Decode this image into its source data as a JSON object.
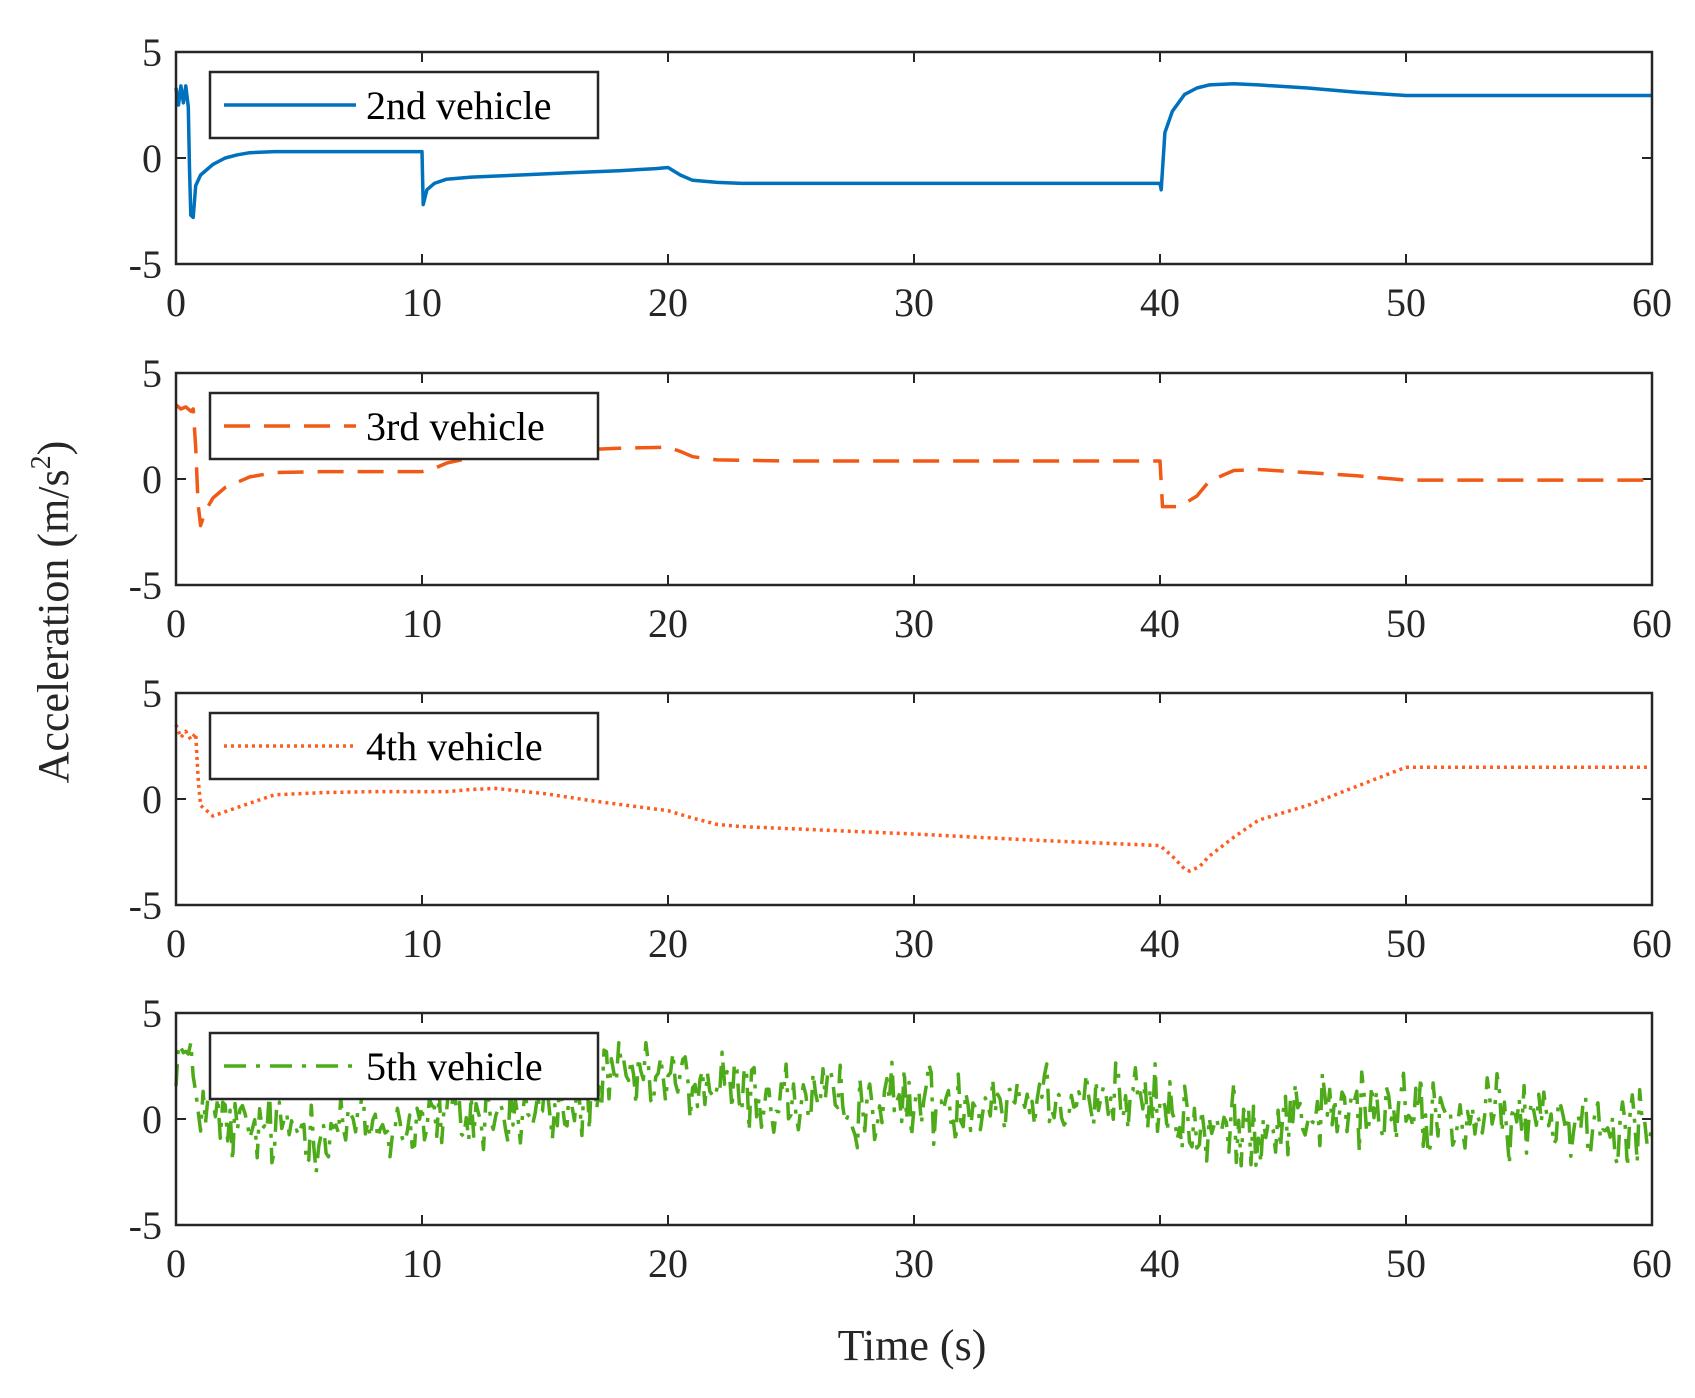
{
  "chart_data": [
    {
      "type": "line",
      "legend": "2nd vehicle",
      "legend_position": "top-left",
      "color": "#0072BD",
      "line_style": "solid",
      "xlim": [
        0,
        60
      ],
      "ylim": [
        -5,
        5
      ],
      "xticks": [
        "0",
        "10",
        "20",
        "30",
        "40",
        "50",
        "60"
      ],
      "yticks": [
        "5",
        "0",
        "-5"
      ],
      "x": [
        0,
        0.1,
        0.2,
        0.3,
        0.4,
        0.5,
        0.55,
        0.6,
        0.7,
        0.8,
        1.0,
        1.5,
        2,
        2.5,
        3,
        4,
        5,
        6,
        8,
        10,
        10.05,
        10.2,
        10.5,
        11,
        12,
        14,
        16,
        18,
        19.5,
        20,
        20.5,
        21,
        22,
        23,
        25,
        30,
        35,
        40,
        40.05,
        40.2,
        40.5,
        41,
        41.5,
        42,
        43,
        44,
        46,
        48,
        50,
        55,
        60
      ],
      "y": [
        3.3,
        2.5,
        3.4,
        2.6,
        3.4,
        2.4,
        -0.5,
        -2.7,
        -2.8,
        -1.3,
        -0.8,
        -0.3,
        0.0,
        0.15,
        0.25,
        0.3,
        0.3,
        0.3,
        0.3,
        0.3,
        -2.2,
        -1.5,
        -1.2,
        -1.0,
        -0.9,
        -0.8,
        -0.7,
        -0.6,
        -0.5,
        -0.45,
        -0.8,
        -1.05,
        -1.15,
        -1.2,
        -1.2,
        -1.2,
        -1.2,
        -1.2,
        -1.5,
        1.2,
        2.2,
        3.0,
        3.3,
        3.45,
        3.5,
        3.45,
        3.3,
        3.1,
        2.95,
        2.95,
        2.95
      ]
    },
    {
      "type": "line",
      "legend": "3rd vehicle",
      "legend_position": "top-left",
      "color": "#F05A16",
      "line_style": "dashed",
      "xlim": [
        0,
        60
      ],
      "ylim": [
        -5,
        5
      ],
      "xticks": [
        "0",
        "10",
        "20",
        "30",
        "40",
        "50",
        "60"
      ],
      "yticks": [
        "5",
        "0",
        "-5"
      ],
      "x": [
        0,
        0.2,
        0.4,
        0.6,
        0.7,
        0.8,
        0.9,
        1.0,
        1.2,
        1.5,
        2,
        3,
        4,
        6,
        8,
        10,
        10.5,
        11,
        12,
        14,
        16,
        18,
        20,
        20.5,
        21,
        22,
        25,
        30,
        35,
        40,
        40.1,
        40.3,
        40.8,
        41.5,
        42,
        43,
        44,
        46,
        48,
        50,
        52,
        55,
        60
      ],
      "y": [
        3.5,
        3.3,
        3.4,
        3.2,
        3.3,
        1.5,
        -1.2,
        -2.2,
        -1.5,
        -0.9,
        -0.4,
        0.1,
        0.3,
        0.35,
        0.35,
        0.35,
        0.5,
        0.75,
        1.0,
        1.2,
        1.35,
        1.45,
        1.5,
        1.3,
        1.05,
        0.9,
        0.85,
        0.85,
        0.85,
        0.85,
        -1.3,
        -1.3,
        -1.3,
        -0.8,
        -0.1,
        0.4,
        0.45,
        0.3,
        0.15,
        -0.05,
        -0.05,
        -0.05,
        -0.05
      ]
    },
    {
      "type": "line",
      "legend": "4th vehicle",
      "legend_position": "top-left",
      "color": "#FF5C1F",
      "line_style": "dotted",
      "xlim": [
        0,
        60
      ],
      "ylim": [
        -5,
        5
      ],
      "xticks": [
        "0",
        "10",
        "20",
        "30",
        "40",
        "50",
        "60"
      ],
      "yticks": [
        "5",
        "0",
        "-5"
      ],
      "x": [
        0,
        0.2,
        0.4,
        0.6,
        0.8,
        0.9,
        1.0,
        1.5,
        2,
        3,
        4,
        6,
        8,
        10,
        11,
        12,
        13,
        15,
        17,
        19,
        20,
        21,
        22,
        23,
        25,
        30,
        35,
        40,
        40.5,
        41,
        41.2,
        41.6,
        42,
        43,
        44,
        46,
        48,
        50,
        55,
        60
      ],
      "y": [
        3.5,
        2.9,
        3.2,
        2.8,
        3.1,
        1.0,
        -0.3,
        -0.8,
        -0.6,
        -0.2,
        0.2,
        0.3,
        0.35,
        0.35,
        0.35,
        0.45,
        0.5,
        0.25,
        -0.1,
        -0.4,
        -0.55,
        -0.9,
        -1.2,
        -1.3,
        -1.4,
        -1.65,
        -1.95,
        -2.2,
        -2.7,
        -3.3,
        -3.4,
        -3.2,
        -2.7,
        -1.8,
        -1.0,
        -0.3,
        0.6,
        1.5,
        1.5,
        1.5
      ]
    },
    {
      "type": "line",
      "legend": "5th vehicle",
      "legend_position": "top-left",
      "color": "#4DAA18",
      "line_style": "dash-dot",
      "xlim": [
        0,
        60
      ],
      "ylim": [
        -5,
        5
      ],
      "xticks": [
        "0",
        "10",
        "20",
        "30",
        "40",
        "50",
        "60"
      ],
      "yticks": [
        "5",
        "0",
        "-5"
      ],
      "noise": {
        "seed": 12345,
        "amplitude": 0.95,
        "dt": 0.1
      },
      "x": [
        0,
        0.3,
        0.6,
        1,
        2,
        3,
        5,
        7,
        9,
        10,
        12,
        14,
        16,
        17,
        18,
        20,
        22,
        24,
        26,
        28,
        30,
        32,
        34,
        36,
        38,
        40,
        41,
        42,
        44,
        46,
        48,
        50,
        52,
        54,
        56,
        58,
        60
      ],
      "y": [
        3.3,
        3.0,
        2.2,
        0.8,
        -0.4,
        -0.6,
        -0.4,
        -0.3,
        -0.4,
        0.0,
        0.1,
        0.2,
        0.5,
        1.4,
        1.8,
        1.8,
        1.5,
        1.0,
        0.7,
        0.7,
        0.8,
        0.9,
        1.1,
        1.2,
        1.0,
        0.6,
        -0.2,
        -0.7,
        -0.3,
        0.3,
        0.4,
        0.2,
        0.0,
        -0.1,
        0.1,
        0.0,
        -0.1
      ]
    }
  ],
  "ylabel": "Acceleration (m/s",
  "ylabel_sup": "2",
  "ylabel_close": ")",
  "xlabel": "Time (s)"
}
